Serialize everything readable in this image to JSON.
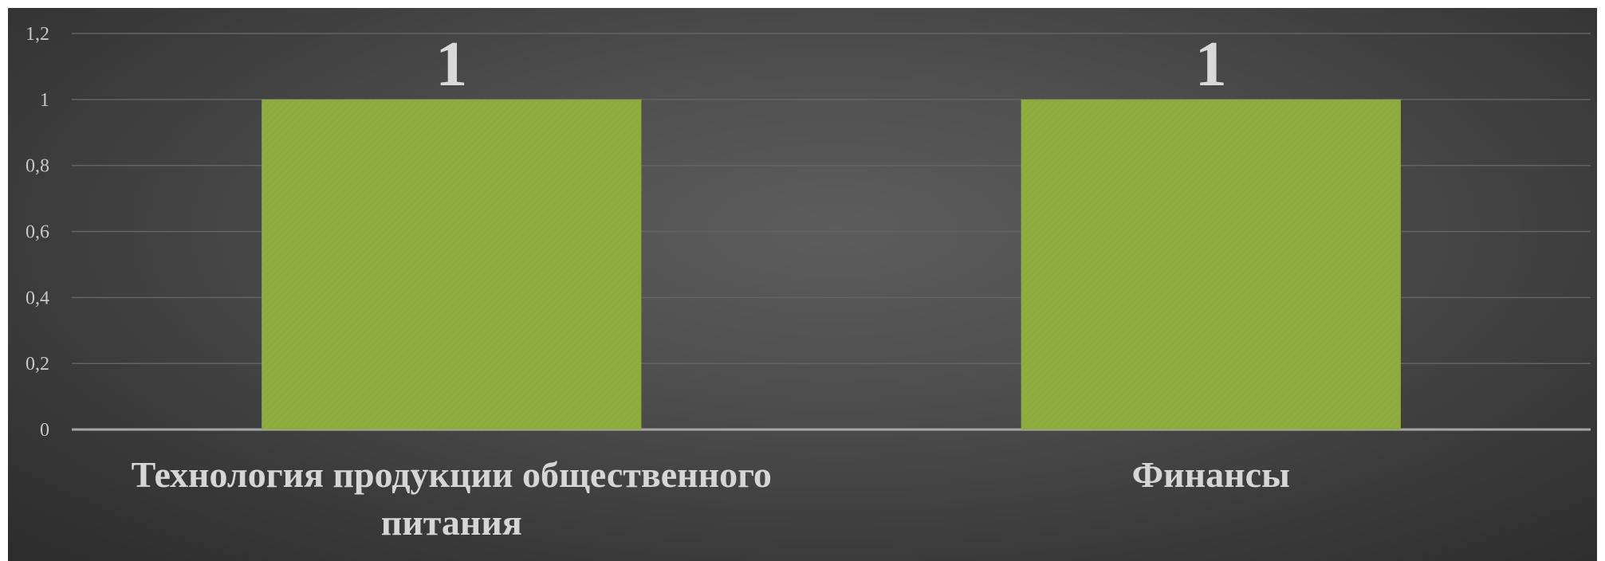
{
  "chart_data": {
    "type": "bar",
    "title": "",
    "xlabel": "",
    "ylabel": "",
    "categories": [
      "Технология продукции общественного питания",
      "Финансы"
    ],
    "values": [
      1,
      1
    ],
    "data_labels": [
      "1",
      "1"
    ],
    "ylim": [
      0,
      1.2
    ],
    "yticks": [
      "0",
      "0,2",
      "0,4",
      "0,6",
      "0,8",
      "1",
      "1,2"
    ],
    "grid": true,
    "legend": "none",
    "colors": {
      "bar": "#8fac3e",
      "background": "#4a4a4a",
      "gridline": "#646464",
      "axis": "#a6a6a6",
      "text": "#d6d6d6"
    }
  }
}
